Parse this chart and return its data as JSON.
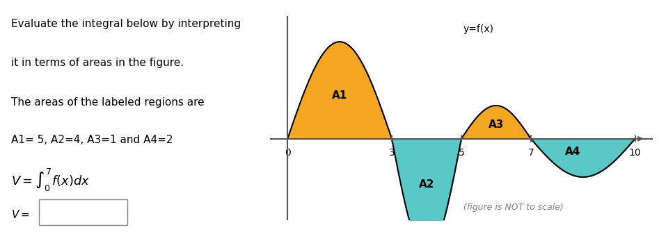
{
  "text_left": [
    "Evaluate the integral below by interpreting",
    "it in terms of areas in the figure.",
    "The areas of the labeled regions are",
    "A1= 5, A2=4, A3=1 and A4=2"
  ],
  "integral_label": "V = \\int_0^7 f(x)dx",
  "answer_label": "V =",
  "figure_note": "(figure is NOT to scale)",
  "y_label": "y=f(x)",
  "x_ticks": [
    0,
    3,
    5,
    7,
    10
  ],
  "region_labels": [
    "A1",
    "A2",
    "A3",
    "A4"
  ],
  "color_above": "#F5A623",
  "color_below": "#5BC8C8",
  "bg_color": "#FFFFFF",
  "axis_color": "#555555"
}
